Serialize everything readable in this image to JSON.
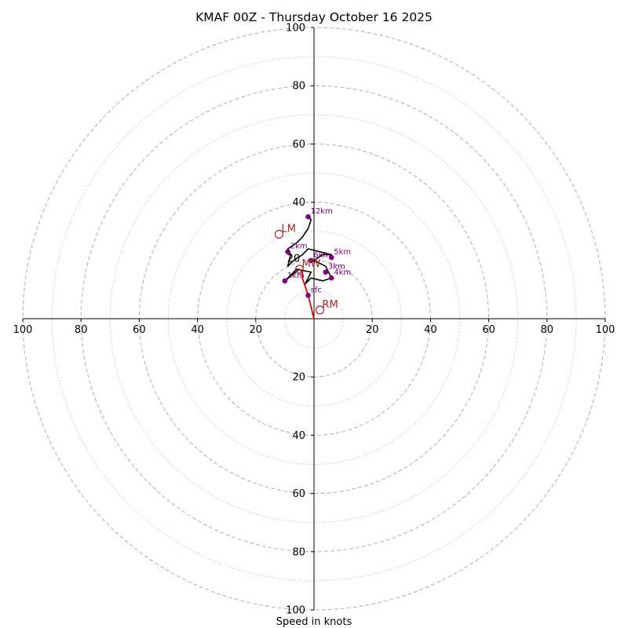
{
  "chart_data": {
    "type": "hodograph",
    "title": "KMAF 00Z - Thursday October 16 2025",
    "xlabel": "Speed in knots",
    "units": "knots",
    "range": [
      -100,
      100
    ],
    "ring_major": [
      20,
      40,
      60,
      80,
      100
    ],
    "ring_minor": [
      10,
      30,
      50,
      70,
      90
    ],
    "tick_labels": {
      "top": [
        "100",
        "80",
        "60",
        "40"
      ],
      "bottom": [
        "20",
        "40",
        "60",
        "80",
        "100"
      ],
      "left": [
        "100",
        "80",
        "60",
        "40",
        "20"
      ],
      "right": [
        "20",
        "40",
        "60",
        "80",
        "100"
      ]
    },
    "colors": {
      "trace": "#000000",
      "low_level": "#e00000",
      "markers": "#800080",
      "motion": "#b22222",
      "ring": "#b4b4b4"
    },
    "low_level_trace": [
      [
        0,
        0
      ],
      [
        -2,
        8
      ],
      [
        -4,
        14
      ],
      [
        -4,
        16
      ],
      [
        -5,
        17
      ]
    ],
    "trace": [
      [
        -5,
        17
      ],
      [
        -10,
        13
      ],
      [
        -8,
        15
      ],
      [
        -6,
        17
      ],
      [
        -1,
        16
      ],
      [
        -3,
        12
      ],
      [
        -1,
        14
      ],
      [
        3,
        13
      ],
      [
        6,
        14
      ],
      [
        4,
        18
      ],
      [
        0,
        20
      ],
      [
        3,
        22
      ],
      [
        6,
        22
      ],
      [
        -2,
        24
      ],
      [
        -4,
        22
      ],
      [
        -7,
        20
      ],
      [
        -9,
        18
      ],
      [
        -8,
        22
      ],
      [
        -9,
        24
      ],
      [
        -6,
        26
      ],
      [
        -4,
        28
      ],
      [
        -2,
        31
      ],
      [
        -1,
        34
      ],
      [
        -2,
        35
      ]
    ],
    "height_markers": [
      {
        "label": "sfc",
        "u": -2,
        "v": 8
      },
      {
        "label": "1km",
        "u": -10,
        "v": 13
      },
      {
        "label": "2km",
        "u": -9,
        "v": 23
      },
      {
        "label": "3km",
        "u": 4,
        "v": 16
      },
      {
        "label": "4km",
        "u": 6,
        "v": 14
      },
      {
        "label": "5km",
        "u": 6,
        "v": 21
      },
      {
        "label": "6km",
        "u": -1,
        "v": 20
      },
      {
        "label": "12km",
        "u": -2,
        "v": 35
      }
    ],
    "extra_labels": [
      {
        "label": "20",
        "u": -7,
        "v": 19.5
      }
    ],
    "storm_motion": [
      {
        "label": "LM",
        "u": -12,
        "v": 29
      },
      {
        "label": "RM",
        "u": 2,
        "v": 3
      },
      {
        "label": "MW",
        "u": -5,
        "v": 17
      }
    ]
  }
}
